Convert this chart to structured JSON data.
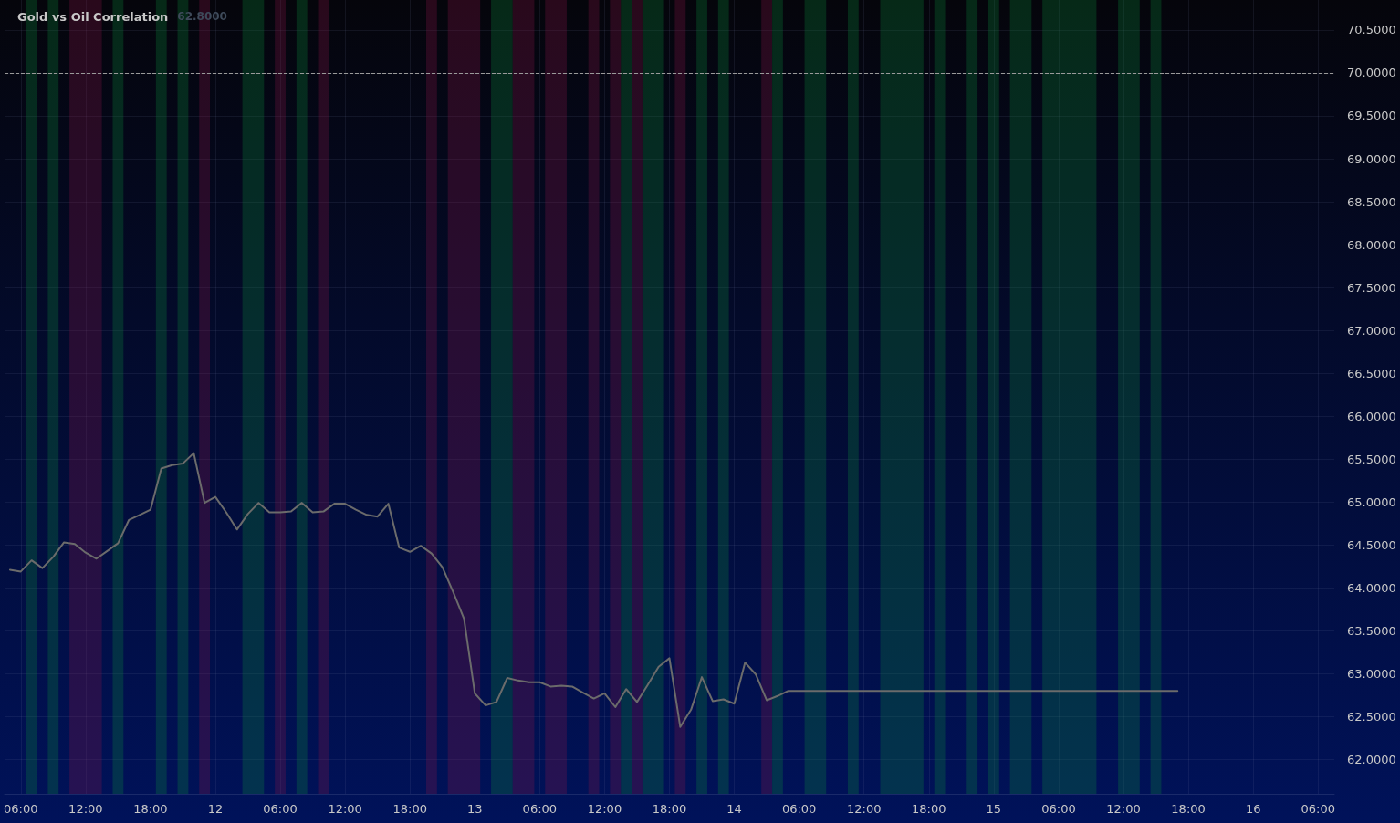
{
  "chart_data": {
    "type": "line",
    "title": "Gold vs Oil Correlation",
    "annotations": [
      "62.8000"
    ],
    "xlim": [
      "--01-11T04:30",
      "--01-16T07:30"
    ],
    "ylim": [
      61.6,
      70.85
    ],
    "xticks": [
      {
        "value": "--01-11T06:00",
        "label": "06:00"
      },
      {
        "value": "--01-11T12:00",
        "label": "12:00"
      },
      {
        "value": "--01-11T18:00",
        "label": "18:00"
      },
      {
        "value": "--01-12",
        "label": "12"
      },
      {
        "value": "--01-12T06:00",
        "label": "06:00"
      },
      {
        "value": "--01-12T12:00",
        "label": "12:00"
      },
      {
        "value": "--01-12T18:00",
        "label": "18:00"
      },
      {
        "value": "--01-13",
        "label": "13"
      },
      {
        "value": "--01-13T06:00",
        "label": "06:00"
      },
      {
        "value": "--01-13T12:00",
        "label": "12:00"
      },
      {
        "value": "--01-13T18:00",
        "label": "18:00"
      },
      {
        "value": "--01-14",
        "label": "14"
      },
      {
        "value": "--01-14T06:00",
        "label": "06:00"
      },
      {
        "value": "--01-14T12:00",
        "label": "12:00"
      },
      {
        "value": "--01-14T18:00",
        "label": "18:00"
      },
      {
        "value": "--01-15",
        "label": "15"
      },
      {
        "value": "--01-15T06:00",
        "label": "06:00"
      },
      {
        "value": "--01-15T12:00",
        "label": "12:00"
      },
      {
        "value": "--01-15T18:00",
        "label": "18:00"
      },
      {
        "value": "--01-16",
        "label": "16"
      },
      {
        "value": "--01-16T06:00",
        "label": "06:00"
      }
    ],
    "yticks": [
      {
        "value": 62,
        "label": "62.0000"
      },
      {
        "value": 62.5,
        "label": "62.5000"
      },
      {
        "value": 63,
        "label": "63.0000"
      },
      {
        "value": 63.5,
        "label": "63.5000"
      },
      {
        "value": 64,
        "label": "64.0000"
      },
      {
        "value": 64.5,
        "label": "64.5000"
      },
      {
        "value": 65,
        "label": "65.0000"
      },
      {
        "value": 65.5,
        "label": "65.5000"
      },
      {
        "value": 66,
        "label": "66.0000"
      },
      {
        "value": 66.5,
        "label": "66.5000"
      },
      {
        "value": 67,
        "label": "67.0000"
      },
      {
        "value": 67.5,
        "label": "67.5000"
      },
      {
        "value": 68,
        "label": "68.0000"
      },
      {
        "value": 68.5,
        "label": "68.5000"
      },
      {
        "value": 69,
        "label": "69.0000"
      },
      {
        "value": 69.5,
        "label": "69.5000"
      },
      {
        "value": 70,
        "label": "70.0000"
      },
      {
        "value": 70.5,
        "label": "70.5000"
      }
    ],
    "grid": true,
    "marker": "none",
    "line_style": "solid",
    "series": [
      {
        "color": "#6b6b6b",
        "x": [
          "--01-11T05:00",
          "--01-11T06:00",
          "--01-11T07:00",
          "--01-11T08:00",
          "--01-11T09:00",
          "--01-11T10:00",
          "--01-11T11:00",
          "--01-11T12:00",
          "--01-11T13:00",
          "--01-11T14:00",
          "--01-11T15:00",
          "--01-11T16:00",
          "--01-11T17:00",
          "--01-11T18:00",
          "--01-11T19:00",
          "--01-11T20:00",
          "--01-11T21:00",
          "--01-11T22:00",
          "--01-11T23:00",
          "--01-12T00:00",
          "--01-12T01:00",
          "--01-12T02:00",
          "--01-12T03:00",
          "--01-12T04:00",
          "--01-12T05:00",
          "--01-12T06:00",
          "--01-12T07:00",
          "--01-12T08:00",
          "--01-12T09:00",
          "--01-12T10:00",
          "--01-12T11:00",
          "--01-12T12:00",
          "--01-12T13:00",
          "--01-12T14:00",
          "--01-12T15:00",
          "--01-12T16:00",
          "--01-12T17:00",
          "--01-12T18:00",
          "--01-12T19:00",
          "--01-12T20:00",
          "--01-12T21:00",
          "--01-12T22:00",
          "--01-12T23:00",
          "--01-13T00:00",
          "--01-13T01:00",
          "--01-13T02:00",
          "--01-13T03:00",
          "--01-13T04:00",
          "--01-13T05:00",
          "--01-13T06:00",
          "--01-13T07:00",
          "--01-13T08:00",
          "--01-13T09:00",
          "--01-13T10:00",
          "--01-13T11:00",
          "--01-13T12:00",
          "--01-13T13:00",
          "--01-13T14:00",
          "--01-13T15:00",
          "--01-13T16:00",
          "--01-13T17:00",
          "--01-13T18:00",
          "--01-13T19:00",
          "--01-13T20:00",
          "--01-13T21:00",
          "--01-13T22:00",
          "--01-13T23:00",
          "--01-14T00:00",
          "--01-14T01:00",
          "--01-14T02:00",
          "--01-14T03:00",
          "--01-14T04:00",
          "--01-14T05:00",
          "--01-15T17:00"
        ],
        "values": [
          64.21,
          64.19,
          64.32,
          64.23,
          64.36,
          64.53,
          64.51,
          64.41,
          64.34,
          64.43,
          64.52,
          64.79,
          64.85,
          64.91,
          65.39,
          65.43,
          65.45,
          65.57,
          64.99,
          65.06,
          64.88,
          64.68,
          64.86,
          64.99,
          64.88,
          64.88,
          64.89,
          64.99,
          64.88,
          64.89,
          64.98,
          64.98,
          64.91,
          64.85,
          64.83,
          64.98,
          64.47,
          64.42,
          64.49,
          64.4,
          64.24,
          63.95,
          63.64,
          62.77,
          62.63,
          62.67,
          62.95,
          62.92,
          62.9,
          62.9,
          62.85,
          62.86,
          62.85,
          62.78,
          62.71,
          62.77,
          62.61,
          62.82,
          62.67,
          62.87,
          63.08,
          63.18,
          62.38,
          62.58,
          62.96,
          62.68,
          62.7,
          62.65,
          63.13,
          62.99,
          62.69,
          62.74,
          62.8,
          62.8
        ]
      }
    ],
    "ref_lines": [
      {
        "axis": "y",
        "value": 70,
        "color": "#9a9a9a",
        "line_style": "dashed"
      }
    ],
    "bands": [
      {
        "axis": "x",
        "from": "--01-11T06:30",
        "to": "--01-11T07:30",
        "color": "#0a8a3a"
      },
      {
        "axis": "x",
        "from": "--01-11T08:30",
        "to": "--01-11T09:30",
        "color": "#0a8a3a"
      },
      {
        "axis": "x",
        "from": "--01-11T14:30",
        "to": "--01-11T15:30",
        "color": "#0a8a3a"
      },
      {
        "axis": "x",
        "from": "--01-11T18:30",
        "to": "--01-11T19:30",
        "color": "#0a8a3a"
      },
      {
        "axis": "x",
        "from": "--01-11T20:30",
        "to": "--01-11T21:30",
        "color": "#0a8a3a"
      },
      {
        "axis": "x",
        "from": "--01-12T02:30",
        "to": "--01-12T04:30",
        "color": "#0a8a3a"
      },
      {
        "axis": "x",
        "from": "--01-12T07:30",
        "to": "--01-12T08:30",
        "color": "#0a8a3a"
      },
      {
        "axis": "x",
        "from": "--01-13T01:30",
        "to": "--01-13T03:30",
        "color": "#0a8a3a"
      },
      {
        "axis": "x",
        "from": "--01-13T13:30",
        "to": "--01-13T14:30",
        "color": "#0a8a3a"
      },
      {
        "axis": "x",
        "from": "--01-13T15:30",
        "to": "--01-13T17:30",
        "color": "#0a8a3a"
      },
      {
        "axis": "x",
        "from": "--01-13T20:30",
        "to": "--01-13T21:30",
        "color": "#0a8a3a"
      },
      {
        "axis": "x",
        "from": "--01-13T22:30",
        "to": "--01-13T23:30",
        "color": "#0a8a3a"
      },
      {
        "axis": "x",
        "from": "--01-14T03:30",
        "to": "--01-14T04:30",
        "color": "#0a8a3a"
      },
      {
        "axis": "x",
        "from": "--01-14T06:30",
        "to": "--01-14T08:30",
        "color": "#0a8a3a"
      },
      {
        "axis": "x",
        "from": "--01-14T10:30",
        "to": "--01-14T11:30",
        "color": "#0a8a3a"
      },
      {
        "axis": "x",
        "from": "--01-14T13:30",
        "to": "--01-14T17:30",
        "color": "#0a8a3a"
      },
      {
        "axis": "x",
        "from": "--01-14T18:30",
        "to": "--01-14T19:30",
        "color": "#0a8a3a"
      },
      {
        "axis": "x",
        "from": "--01-14T21:30",
        "to": "--01-14T22:30",
        "color": "#0a8a3a"
      },
      {
        "axis": "x",
        "from": "--01-14T23:30",
        "to": "--01-15T00:30",
        "color": "#0a8a3a"
      },
      {
        "axis": "x",
        "from": "--01-15T01:30",
        "to": "--01-15T03:30",
        "color": "#0a8a3a"
      },
      {
        "axis": "x",
        "from": "--01-15T04:30",
        "to": "--01-15T09:30",
        "color": "#0a8a3a"
      },
      {
        "axis": "x",
        "from": "--01-15T11:30",
        "to": "--01-15T13:30",
        "color": "#0a8a3a"
      },
      {
        "axis": "x",
        "from": "--01-15T14:30",
        "to": "--01-15T15:30",
        "color": "#0a8a3a"
      },
      {
        "axis": "x",
        "from": "--01-11T10:30",
        "to": "--01-11T13:30",
        "color": "#8a1448"
      },
      {
        "axis": "x",
        "from": "--01-11T22:30",
        "to": "--01-11T23:30",
        "color": "#8a1448"
      },
      {
        "axis": "x",
        "from": "--01-12T05:30",
        "to": "--01-12T06:30",
        "color": "#8a1448"
      },
      {
        "axis": "x",
        "from": "--01-12T09:30",
        "to": "--01-12T10:30",
        "color": "#8a1448"
      },
      {
        "axis": "x",
        "from": "--01-12T19:30",
        "to": "--01-12T20:30",
        "color": "#8a1448"
      },
      {
        "axis": "x",
        "from": "--01-12T21:30",
        "to": "--01-13T00:30",
        "color": "#8a1448"
      },
      {
        "axis": "x",
        "from": "--01-13T03:30",
        "to": "--01-13T05:30",
        "color": "#8a1448"
      },
      {
        "axis": "x",
        "from": "--01-13T06:30",
        "to": "--01-13T08:30",
        "color": "#8a1448"
      },
      {
        "axis": "x",
        "from": "--01-13T10:30",
        "to": "--01-13T11:30",
        "color": "#8a1448"
      },
      {
        "axis": "x",
        "from": "--01-13T12:30",
        "to": "--01-13T13:30",
        "color": "#8a1448"
      },
      {
        "axis": "x",
        "from": "--01-13T14:30",
        "to": "--01-13T15:30",
        "color": "#8a1448"
      },
      {
        "axis": "x",
        "from": "--01-13T18:30",
        "to": "--01-13T19:30",
        "color": "#8a1448"
      },
      {
        "axis": "x",
        "from": "--01-14T02:30",
        "to": "--01-14T03:30",
        "color": "#8a1448"
      }
    ]
  }
}
